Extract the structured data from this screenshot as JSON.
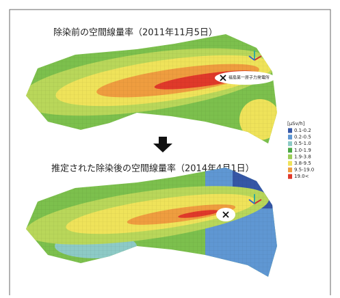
{
  "before": {
    "title": "除染前の空間線量率（2011年11月5日）",
    "plant_label": "福島第一原子力発電所"
  },
  "after": {
    "title": "推定された除染後の空間線量率（2014年4月1日）"
  },
  "legend": {
    "title": "[μSv/h]",
    "items": [
      {
        "label": "0.1-0.2",
        "color": "#3557a6"
      },
      {
        "label": "0.2-0.5",
        "color": "#5f97d3"
      },
      {
        "label": "0.5-1.0",
        "color": "#8dcac6"
      },
      {
        "label": "1.0-1.9",
        "color": "#4aa843"
      },
      {
        "label": "1.9-3.8",
        "color": "#9ccd58"
      },
      {
        "label": "3.8-9.5",
        "color": "#efe35a"
      },
      {
        "label": "9.5-19.0",
        "color": "#ef9d3f"
      },
      {
        "label": "19.0<",
        "color": "#e0392a"
      }
    ]
  }
}
